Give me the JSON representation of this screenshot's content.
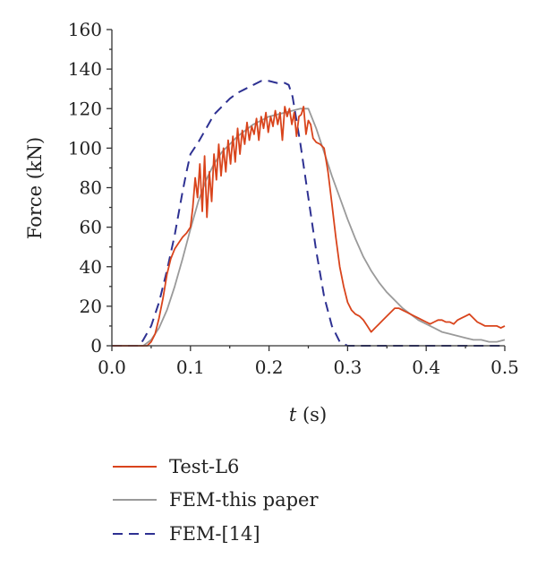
{
  "chart_data": {
    "type": "line",
    "title": "",
    "xlabel_var": "t",
    "xlabel_unit": " (s)",
    "ylabel": "Force (kN)",
    "xlim": [
      0,
      0.5
    ],
    "ylim": [
      0,
      160
    ],
    "xticks": [
      "0.0",
      "0.1",
      "0.2",
      "0.3",
      "0.4",
      "0.5"
    ],
    "yticks": [
      "0",
      "20",
      "40",
      "60",
      "80",
      "100",
      "120",
      "140",
      "160"
    ],
    "grid": false,
    "legend_position": "bottom",
    "series": [
      {
        "name": "Test-L6",
        "color": "#d9441c",
        "dash": "solid",
        "x": [
          0,
          0.03,
          0.045,
          0.05,
          0.055,
          0.06,
          0.065,
          0.07,
          0.075,
          0.08,
          0.085,
          0.09,
          0.095,
          0.1,
          0.103,
          0.106,
          0.109,
          0.112,
          0.115,
          0.118,
          0.121,
          0.124,
          0.127,
          0.13,
          0.133,
          0.136,
          0.139,
          0.142,
          0.145,
          0.148,
          0.151,
          0.154,
          0.157,
          0.16,
          0.163,
          0.166,
          0.169,
          0.172,
          0.175,
          0.178,
          0.181,
          0.184,
          0.187,
          0.19,
          0.193,
          0.196,
          0.199,
          0.202,
          0.205,
          0.208,
          0.211,
          0.214,
          0.217,
          0.22,
          0.223,
          0.226,
          0.229,
          0.232,
          0.235,
          0.238,
          0.241,
          0.244,
          0.247,
          0.25,
          0.253,
          0.256,
          0.26,
          0.265,
          0.27,
          0.275,
          0.28,
          0.285,
          0.29,
          0.295,
          0.3,
          0.305,
          0.31,
          0.315,
          0.32,
          0.325,
          0.33,
          0.335,
          0.34,
          0.345,
          0.35,
          0.355,
          0.36,
          0.365,
          0.37,
          0.375,
          0.38,
          0.385,
          0.39,
          0.395,
          0.4,
          0.405,
          0.41,
          0.415,
          0.42,
          0.425,
          0.43,
          0.435,
          0.44,
          0.445,
          0.45,
          0.455,
          0.46,
          0.465,
          0.47,
          0.475,
          0.48,
          0.485,
          0.49,
          0.495,
          0.5
        ],
        "y": [
          0,
          0,
          0,
          2,
          6,
          14,
          24,
          36,
          44,
          49,
          52,
          55,
          57,
          60,
          70,
          85,
          75,
          92,
          68,
          96,
          65,
          88,
          73,
          97,
          84,
          102,
          86,
          100,
          88,
          104,
          92,
          106,
          93,
          110,
          97,
          109,
          102,
          113,
          104,
          111,
          107,
          115,
          104,
          116,
          110,
          118,
          108,
          116,
          111,
          119,
          112,
          118,
          104,
          121,
          116,
          120,
          112,
          118,
          106,
          116,
          117,
          121,
          107,
          114,
          112,
          105,
          103,
          102,
          100,
          88,
          72,
          55,
          40,
          30,
          22,
          18,
          16,
          15,
          13,
          10,
          7,
          9,
          11,
          13,
          15,
          17,
          19,
          19,
          18,
          17,
          16,
          15,
          14,
          13,
          12,
          11,
          12,
          13,
          13,
          12,
          12,
          11,
          13,
          14,
          15,
          16,
          14,
          12,
          11,
          10,
          10,
          10,
          10,
          9,
          10
        ]
      },
      {
        "name": "FEM-this paper",
        "color": "#9a9a9a",
        "dash": "solid",
        "x": [
          0,
          0.04,
          0.05,
          0.06,
          0.07,
          0.08,
          0.09,
          0.1,
          0.11,
          0.12,
          0.13,
          0.14,
          0.15,
          0.16,
          0.17,
          0.18,
          0.19,
          0.2,
          0.21,
          0.22,
          0.23,
          0.24,
          0.25,
          0.26,
          0.27,
          0.28,
          0.29,
          0.3,
          0.31,
          0.32,
          0.33,
          0.34,
          0.35,
          0.36,
          0.37,
          0.38,
          0.39,
          0.4,
          0.41,
          0.42,
          0.43,
          0.44,
          0.45,
          0.46,
          0.47,
          0.48,
          0.49,
          0.5
        ],
        "y": [
          0,
          0,
          3,
          9,
          18,
          30,
          44,
          59,
          73,
          84,
          92,
          98,
          102,
          106,
          109,
          112,
          114,
          116,
          117,
          118,
          119,
          120,
          120,
          110,
          98,
          86,
          75,
          64,
          54,
          45,
          38,
          32,
          27,
          23,
          19,
          16,
          13,
          11,
          9,
          7,
          6,
          5,
          4,
          3,
          3,
          2,
          2,
          3
        ]
      },
      {
        "name": "FEM-[14]",
        "color": "#2e3192",
        "dash": "dashed",
        "x": [
          0,
          0.035,
          0.04,
          0.05,
          0.06,
          0.07,
          0.08,
          0.09,
          0.095,
          0.1,
          0.11,
          0.12,
          0.13,
          0.14,
          0.15,
          0.16,
          0.17,
          0.18,
          0.19,
          0.2,
          0.21,
          0.22,
          0.225,
          0.23,
          0.24,
          0.25,
          0.26,
          0.27,
          0.28,
          0.29,
          0.3,
          0.35,
          0.4,
          0.45,
          0.5
        ],
        "y": [
          0,
          0,
          3,
          10,
          22,
          38,
          56,
          78,
          88,
          97,
          103,
          110,
          117,
          121,
          125,
          128,
          130,
          132,
          134,
          134,
          133,
          133,
          132,
          126,
          102,
          75,
          48,
          25,
          10,
          2,
          0,
          0,
          0,
          0,
          0
        ]
      }
    ]
  }
}
